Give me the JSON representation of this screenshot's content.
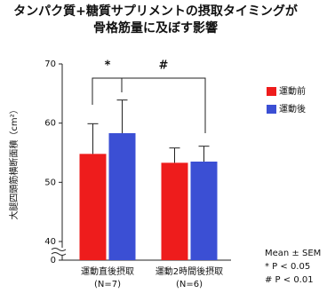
{
  "chart_data": {
    "type": "bar",
    "title": [
      "タンパク質+糖質サプリメントの摂取タイミングが",
      "骨格筋量に及ぼす影響"
    ],
    "ylabel": "大腿四頭筋横断面積（cm²）",
    "categories": [
      "運動直後摂取",
      "運動2時間後摂取"
    ],
    "category_notes": [
      "(N=7)",
      "(N=6)"
    ],
    "series": [
      {
        "name": "運動前",
        "color": "#ee1c1c",
        "values": [
          54.8,
          53.3
        ],
        "errors": [
          5.1,
          2.5
        ]
      },
      {
        "name": "運動後",
        "color": "#3b4fd4",
        "values": [
          58.3,
          53.5
        ],
        "errors": [
          5.6,
          2.6
        ]
      }
    ],
    "ylim": [
      40,
      70
    ],
    "yticks": [
      0,
      40,
      50,
      60,
      70
    ],
    "axis_break": true,
    "annotations": [
      "*",
      "#"
    ],
    "notes": [
      "Mean ± SEM",
      "* P < 0.05",
      "# P < 0.01"
    ],
    "legend": "right",
    "grid": false
  }
}
